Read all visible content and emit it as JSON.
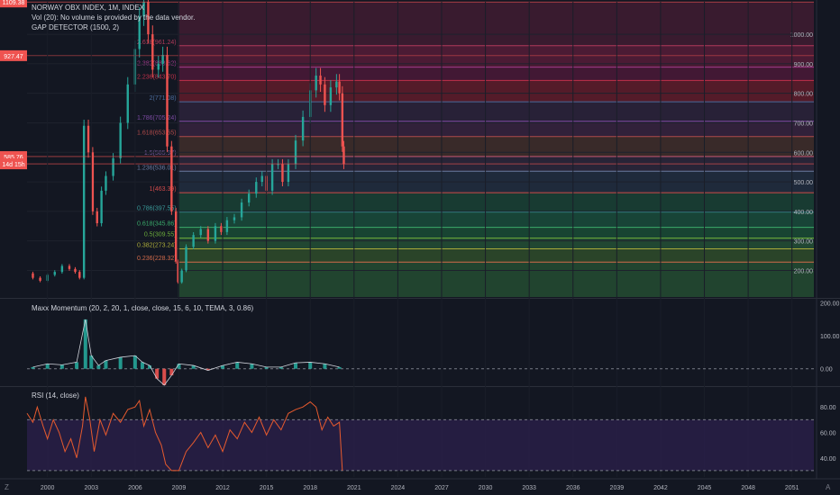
{
  "header": {
    "symbol_line": "NORWAY OBX INDEX, 1M, INDEX",
    "volume_note": "Vol (20): No volume is provided by the data vendor.",
    "indicator_note": "GAP DETECTOR (1500, 2)"
  },
  "panes": {
    "momentum_title": "Maxx Momentum (20, 2, 20, 1, close, close, 15, 6, 10, TEMA, 3, 0.86)",
    "rsi_title": "RSI (14, close)"
  },
  "corner": {
    "left": "Z",
    "right": "A"
  },
  "colors": {
    "background": "#131722",
    "candle_up": "#26a69a",
    "candle_down": "#ef5350",
    "rsi_line": "#e65a2e",
    "rsi_band": "#2a1f4a"
  },
  "chart_data": [
    {
      "type": "candlestick",
      "name": "NORWAY OBX INDEX",
      "x_ticks": [
        "2000",
        "2003",
        "2006",
        "2009",
        "2012",
        "2015",
        "2018",
        "2021",
        "2024",
        "2027",
        "2030",
        "2033",
        "2036",
        "2039",
        "2042",
        "2045",
        "2048",
        "2051"
      ],
      "y_ticks": [
        200,
        300,
        400,
        500,
        600,
        700,
        800,
        900,
        1000
      ],
      "y_tick_labels": [
        "200.00",
        "300.00",
        "400.00",
        "500.00",
        "600.00",
        "700.00",
        "800.00",
        "900.00",
        "1000.00"
      ],
      "ylim": [
        110,
        1110
      ],
      "price_tags": [
        {
          "value": 1109.38,
          "label": "1109.38"
        },
        {
          "value": 927.47,
          "label": "927.47"
        },
        {
          "value": 585.76,
          "label": "585.76"
        },
        {
          "value": 561,
          "label": "14d 15h"
        }
      ],
      "series": [
        {
          "x": [
            1998.6,
            1999.0,
            1999.5,
            2000.0,
            2000.5,
            2001.0,
            2001.5,
            2001.9,
            2002.2,
            2002.5,
            2002.8,
            2003.1,
            2003.4,
            2003.7,
            2004.0,
            2004.5,
            2005.0,
            2005.5,
            2006.0,
            2006.3,
            2006.6,
            2006.9,
            2007.2,
            2007.6,
            2007.9,
            2008.2,
            2008.5,
            2008.8,
            2008.95,
            2009.2,
            2009.5,
            2010.0,
            2010.5,
            2011.0,
            2011.5,
            2011.9,
            2012.3,
            2012.8,
            2013.3,
            2013.8,
            2014.3,
            2014.7,
            2015.0,
            2015.4,
            2015.8,
            2016.1,
            2016.5,
            2017.0,
            2017.5,
            2018.0,
            2018.4,
            2018.7,
            2019.0,
            2019.4,
            2019.8,
            2020.0,
            2020.2,
            2020.3
          ],
          "values": [
            190,
            175,
            165,
            185,
            195,
            215,
            205,
            195,
            175,
            690,
            600,
            400,
            360,
            470,
            520,
            580,
            700,
            830,
            950,
            1060,
            1109,
            1000,
            880,
            900,
            930,
            620,
            400,
            230,
            160,
            200,
            280,
            320,
            340,
            300,
            350,
            330,
            370,
            380,
            430,
            460,
            500,
            520,
            470,
            560,
            560,
            500,
            560,
            640,
            720,
            810,
            860,
            830,
            760,
            820,
            840,
            800,
            620,
            560
          ]
        }
      ],
      "fibonacci_levels": [
        {
          "ratio": "2.618",
          "value": 961.24,
          "label": "2.618(961.24)",
          "color": "#b03a5a"
        },
        {
          "ratio": "2.382",
          "value": 888.62,
          "label": "2.382(888.62)",
          "color": "#a03a8a"
        },
        {
          "ratio": "2.236",
          "value": 843.7,
          "label": "2.236(843.70)",
          "color": "#c0304a"
        },
        {
          "ratio": "2",
          "value": 771.08,
          "label": "2(771.08)",
          "color": "#4a6a9a"
        },
        {
          "ratio": "1.786",
          "value": 705.24,
          "label": "1.786(705.24)",
          "color": "#7a4aa0"
        },
        {
          "ratio": "1.618",
          "value": 653.55,
          "label": "1.618(653.55)",
          "color": "#b04a4a"
        },
        {
          "ratio": "1.5",
          "value": 585.97,
          "label": "1.5(585.97)",
          "color": "#7a5a9a"
        },
        {
          "ratio": "1.236",
          "value": 536.01,
          "label": "1.236(536.01)",
          "color": "#6a7aa0"
        },
        {
          "ratio": "1",
          "value": 463.39,
          "label": "1(463.39)",
          "color": "#d04a4a"
        },
        {
          "ratio": "0.786",
          "value": 397.55,
          "label": "0.786(397.55)",
          "color": "#3a9a9a"
        },
        {
          "ratio": "0.618",
          "value": 345.86,
          "label": "0.618(345.86)",
          "color": "#3aaa6a"
        },
        {
          "ratio": "0.5",
          "value": 309.55,
          "label": "0.5(309.55)",
          "color": "#6aaa3a"
        },
        {
          "ratio": "0.382",
          "value": 273.24,
          "label": "0.382(273.24)",
          "color": "#aaaa3a"
        },
        {
          "ratio": "0.236",
          "value": 228.32,
          "label": "0.236(228.32)",
          "color": "#d06a4a"
        }
      ],
      "fib_start_year": 2008.95
    },
    {
      "type": "bar",
      "name": "Maxx Momentum",
      "y_ticks": [
        0,
        100,
        200
      ],
      "y_tick_labels": [
        "0.00",
        "100.00",
        "200.00"
      ],
      "ylim": [
        -50,
        210
      ],
      "x": [
        1999,
        2000,
        2001,
        2002,
        2002.6,
        2003,
        2003.5,
        2004,
        2005,
        2006,
        2006.5,
        2007,
        2007.5,
        2008,
        2008.5,
        2009,
        2010,
        2011,
        2012,
        2013,
        2014,
        2015,
        2016,
        2017,
        2018,
        2019,
        2020
      ],
      "values": [
        5,
        15,
        12,
        20,
        150,
        40,
        10,
        25,
        35,
        40,
        20,
        10,
        -30,
        -50,
        -20,
        15,
        10,
        -5,
        10,
        20,
        15,
        5,
        5,
        18,
        20,
        15,
        5
      ]
    },
    {
      "type": "line",
      "name": "RSI",
      "y_ticks": [
        40,
        60,
        80
      ],
      "y_tick_labels": [
        "40.00",
        "60.00",
        "80.00"
      ],
      "ylim": [
        25,
        95
      ],
      "band": [
        30,
        70
      ],
      "x": [
        1998.6,
        1999.0,
        1999.3,
        1999.7,
        2000.0,
        2000.4,
        2000.8,
        2001.2,
        2001.6,
        2002.0,
        2002.4,
        2002.6,
        2002.9,
        2003.2,
        2003.6,
        2004.0,
        2004.5,
        2005.0,
        2005.5,
        2006.0,
        2006.3,
        2006.6,
        2007.0,
        2007.4,
        2007.8,
        2008.1,
        2008.5,
        2009.0,
        2009.5,
        2010.0,
        2010.5,
        2011.0,
        2011.5,
        2012.0,
        2012.5,
        2013.0,
        2013.5,
        2014.0,
        2014.5,
        2015.0,
        2015.5,
        2016.0,
        2016.5,
        2017.0,
        2017.5,
        2018.0,
        2018.4,
        2018.8,
        2019.2,
        2019.6,
        2020.0,
        2020.2
      ],
      "values": [
        75,
        68,
        80,
        65,
        55,
        70,
        60,
        45,
        55,
        40,
        65,
        88,
        70,
        45,
        70,
        58,
        75,
        68,
        78,
        80,
        85,
        65,
        78,
        60,
        50,
        35,
        30,
        30,
        45,
        52,
        60,
        48,
        58,
        45,
        62,
        55,
        68,
        60,
        72,
        58,
        70,
        62,
        75,
        78,
        80,
        84,
        80,
        62,
        72,
        65,
        68,
        30
      ]
    }
  ]
}
